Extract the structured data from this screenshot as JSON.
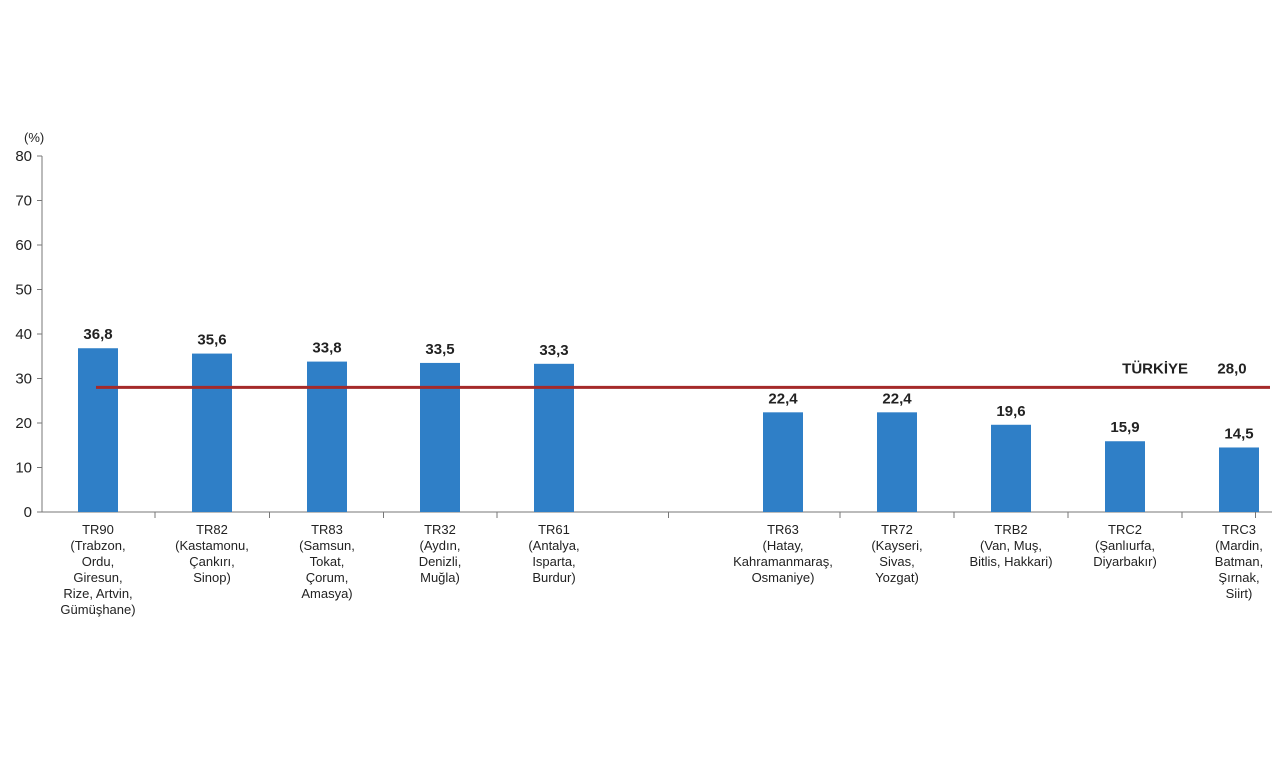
{
  "chart_data": {
    "type": "bar",
    "ylabel": "(%)",
    "ylim": [
      0,
      80
    ],
    "yticks": [
      0,
      10,
      20,
      30,
      40,
      50,
      60,
      70,
      80
    ],
    "grid": false,
    "categories": [
      {
        "code": "TR90",
        "lines": [
          "(Trabzon,",
          "Ordu,",
          "Giresun,",
          "Rize, Artvin,",
          "Gümüşhane)"
        ]
      },
      {
        "code": "TR82",
        "lines": [
          "(Kastamonu,",
          "Çankırı,",
          "Sinop)"
        ]
      },
      {
        "code": "TR83",
        "lines": [
          "(Samsun,",
          "Tokat,",
          "Çorum,",
          "Amasya)"
        ]
      },
      {
        "code": "TR32",
        "lines": [
          "(Aydın,",
          "Denizli,",
          "Muğla)"
        ]
      },
      {
        "code": "TR61",
        "lines": [
          "(Antalya,",
          "Isparta,",
          "Burdur)"
        ]
      },
      {
        "code": "TR63",
        "lines": [
          "(Hatay,",
          "Kahramanmaraş,",
          "Osmaniye)"
        ]
      },
      {
        "code": "TR72",
        "lines": [
          "(Kayseri,",
          "Sivas,",
          "Yozgat)"
        ]
      },
      {
        "code": "TRB2",
        "lines": [
          "(Van, Muş,",
          "Bitlis, Hakkari)"
        ]
      },
      {
        "code": "TRC2",
        "lines": [
          "(Şanlıurfa,",
          "Diyarbakır)"
        ]
      },
      {
        "code": "TRC3",
        "lines": [
          "(Mardin,",
          "Batman,",
          "Şırnak,",
          "Siirt)"
        ]
      }
    ],
    "values": [
      36.8,
      35.6,
      33.8,
      33.5,
      33.3,
      22.4,
      22.4,
      19.6,
      15.9,
      14.5
    ],
    "value_labels": [
      "36,8",
      "35,6",
      "33,8",
      "33,5",
      "33,3",
      "22,4",
      "22,4",
      "19,6",
      "15,9",
      "14,5"
    ],
    "reference_line": {
      "name": "TÜRKİYE",
      "value": 28.0,
      "value_label": "28,0"
    },
    "colors": {
      "bar": "#2f7fc7",
      "reference_line": "#a52a2a",
      "axis": "#777777"
    }
  }
}
